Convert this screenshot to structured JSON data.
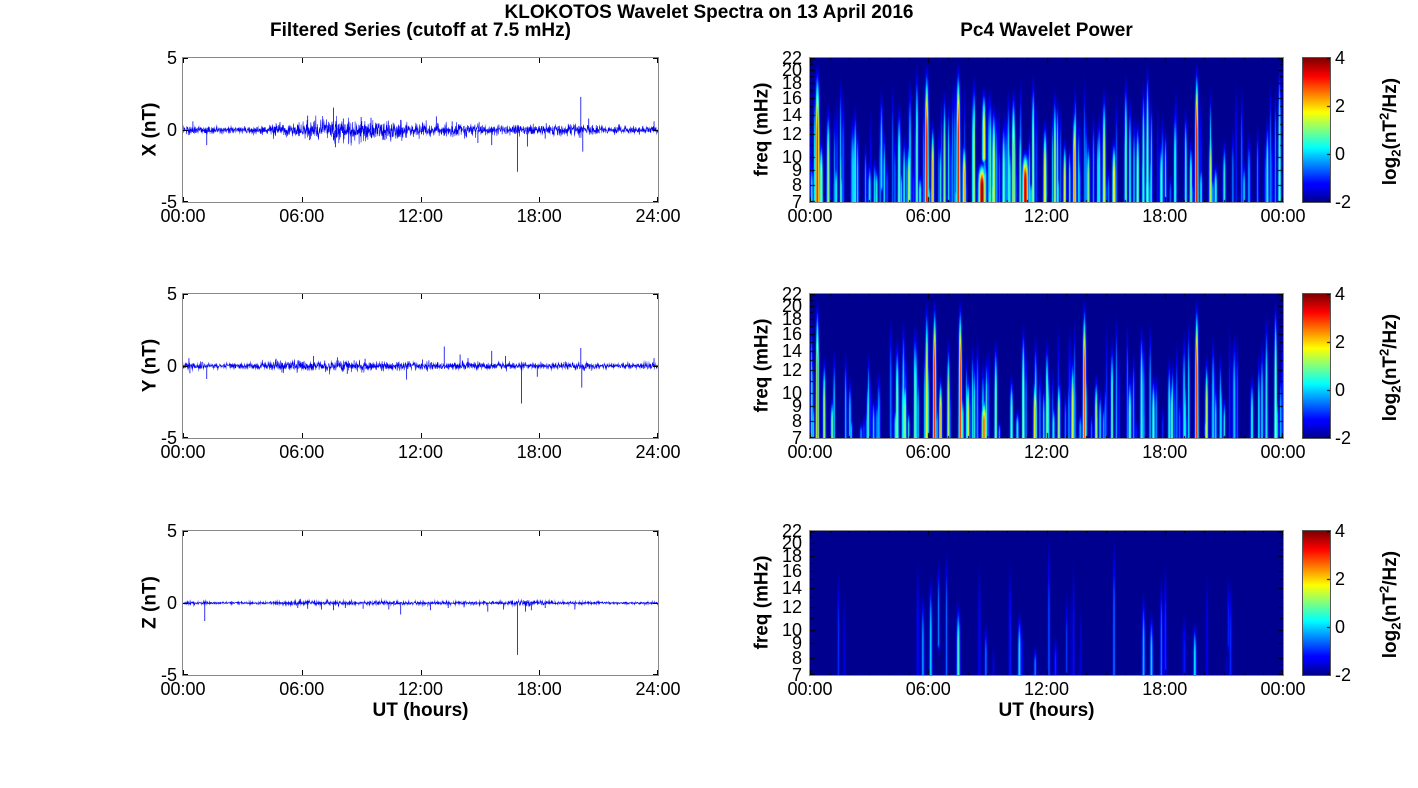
{
  "figure": {
    "title": "KLOKOTOS Wavelet Spectra on 13 April 2016",
    "left_title": "Filtered Series (cutoff at 7.5 mHz)",
    "right_title": "Pc4 Wavelet Power",
    "x_axis_label": "UT (hours)",
    "colors": {
      "line": "#0000ee",
      "spectro_background": "#00008f",
      "axis_box": "#888888",
      "tick_mark": "#000000",
      "text": "#000000"
    }
  },
  "chart_data": [
    {
      "type": "line",
      "panel": "timeseries",
      "component": "X",
      "ylabel": "X (nT)",
      "x_ticks": [
        "00:00",
        "06:00",
        "12:00",
        "18:00",
        "24:00"
      ],
      "y_ticks": [
        "5",
        "0",
        "-5"
      ],
      "ylim": [
        -5,
        5
      ],
      "xlim_hours": [
        0,
        24
      ],
      "seed": 101,
      "noise_envelope_per_hour": [
        0.16,
        0.14,
        0.12,
        0.12,
        0.14,
        0.22,
        0.3,
        0.38,
        0.42,
        0.38,
        0.32,
        0.3,
        0.28,
        0.24,
        0.2,
        0.2,
        0.18,
        0.18,
        0.16,
        0.2,
        0.28,
        0.14,
        0.12,
        0.12,
        0.14
      ],
      "spike_columns": [
        "t_hours",
        "value_nT"
      ],
      "spikes": [
        [
          0.5,
          0.6
        ],
        [
          1.2,
          -1.05
        ],
        [
          4.9,
          0.55
        ],
        [
          6.3,
          1.0
        ],
        [
          6.4,
          -0.7
        ],
        [
          7.6,
          1.55
        ],
        [
          7.7,
          -1.2
        ],
        [
          8.1,
          0.8
        ],
        [
          8.5,
          -0.9
        ],
        [
          9.0,
          0.9
        ],
        [
          9.5,
          0.85
        ],
        [
          10.2,
          -0.7
        ],
        [
          11.0,
          0.7
        ],
        [
          12.8,
          0.95
        ],
        [
          13.6,
          0.6
        ],
        [
          14.9,
          -0.9
        ],
        [
          15.6,
          -1.05
        ],
        [
          16.9,
          -2.9
        ],
        [
          17.4,
          -1.15
        ],
        [
          18.3,
          -0.6
        ],
        [
          20.1,
          2.3
        ],
        [
          20.2,
          -1.5
        ],
        [
          20.5,
          0.8
        ],
        [
          23.8,
          0.6
        ]
      ]
    },
    {
      "type": "heatmap",
      "panel": "spectrogram",
      "component": "X",
      "ylabel": "freq (mHz)",
      "x_ticks": [
        "00:00",
        "06:00",
        "12:00",
        "18:00",
        "00:00"
      ],
      "y_ticks": [
        7,
        8,
        9,
        10,
        12,
        14,
        16,
        18,
        20,
        22
      ],
      "freq_range_mHz": [
        7,
        22
      ],
      "yscale": "log",
      "value_range_log2_power": [
        -2,
        4
      ],
      "colorbar": {
        "ticks": [
          "4",
          "2",
          "0",
          "-2"
        ],
        "tick_values": [
          4,
          2,
          0,
          -2
        ],
        "label_parts": {
          "pre": "log",
          "sub": "2",
          "mid": "(nT",
          "sup": "2",
          "post": "/Hz)"
        }
      },
      "streak_columns": [
        "t_hours",
        "sigma_hours",
        "f_low_mHz",
        "f_high_mHz",
        "peak_log2_power"
      ],
      "streaks": [
        [
          0.35,
          0.08,
          7,
          22,
          3.2
        ],
        [
          0.55,
          0.05,
          7,
          12,
          2.0
        ],
        [
          0.9,
          0.06,
          7,
          16,
          1.2
        ],
        [
          1.3,
          0.05,
          7,
          10,
          0.5
        ],
        [
          2.2,
          0.05,
          7,
          14,
          0.2
        ],
        [
          3.0,
          0.05,
          7,
          10,
          0.5
        ],
        [
          3.6,
          0.05,
          8,
          18,
          0.3
        ],
        [
          4.5,
          0.06,
          7,
          16,
          1.0
        ],
        [
          5.0,
          0.06,
          7,
          12,
          1.6
        ],
        [
          5.4,
          0.05,
          7,
          22,
          1.0
        ],
        [
          5.9,
          0.07,
          7,
          22,
          3.4
        ],
        [
          6.2,
          0.05,
          7,
          14,
          2.2
        ],
        [
          6.8,
          0.05,
          7,
          18,
          1.2
        ],
        [
          7.5,
          0.07,
          7,
          22,
          3.5
        ],
        [
          7.8,
          0.06,
          7,
          12,
          2.4
        ],
        [
          8.3,
          0.05,
          7,
          20,
          1.5
        ],
        [
          8.7,
          0.12,
          7,
          10,
          4.0
        ],
        [
          8.8,
          0.07,
          10,
          18,
          2.2
        ],
        [
          9.3,
          0.06,
          7,
          16,
          2.0
        ],
        [
          9.8,
          0.05,
          7,
          14,
          1.4
        ],
        [
          10.3,
          0.06,
          7,
          18,
          2.2
        ],
        [
          10.9,
          0.1,
          7,
          11,
          3.8
        ],
        [
          11.3,
          0.05,
          7,
          20,
          1.6
        ],
        [
          11.9,
          0.06,
          7,
          14,
          2.0
        ],
        [
          12.4,
          0.05,
          7,
          18,
          1.4
        ],
        [
          12.9,
          0.05,
          7,
          12,
          1.8
        ],
        [
          13.4,
          0.06,
          7,
          16,
          2.4
        ],
        [
          14.1,
          0.05,
          7,
          12,
          1.2
        ],
        [
          14.9,
          0.06,
          7,
          18,
          1.6
        ],
        [
          15.4,
          0.06,
          7,
          12,
          2.2
        ],
        [
          16.0,
          0.05,
          7,
          20,
          1.2
        ],
        [
          16.6,
          0.05,
          7,
          14,
          1.5
        ],
        [
          17.1,
          0.05,
          7,
          22,
          1.3
        ],
        [
          17.8,
          0.05,
          7,
          12,
          1.0
        ],
        [
          18.5,
          0.05,
          7,
          16,
          0.8
        ],
        [
          19.3,
          0.05,
          7,
          12,
          1.0
        ],
        [
          19.6,
          0.06,
          7,
          22,
          3.6
        ],
        [
          20.3,
          0.05,
          7,
          14,
          1.6
        ],
        [
          21.0,
          0.05,
          7,
          12,
          0.6
        ],
        [
          22.0,
          0.04,
          7,
          10,
          0.3
        ],
        [
          23.8,
          0.05,
          7,
          22,
          1.4
        ]
      ],
      "minor_streaks": {
        "count": 150,
        "seed": 11,
        "v_min": -1.2,
        "v_max": 1.0
      }
    },
    {
      "type": "line",
      "panel": "timeseries",
      "component": "Y",
      "ylabel": "Y (nT)",
      "x_ticks": [
        "00:00",
        "06:00",
        "12:00",
        "18:00",
        "24:00"
      ],
      "y_ticks": [
        "5",
        "0",
        "-5"
      ],
      "ylim": [
        -5,
        5
      ],
      "xlim_hours": [
        0,
        24
      ],
      "seed": 202,
      "noise_envelope_per_hour": [
        0.14,
        0.11,
        0.09,
        0.09,
        0.12,
        0.18,
        0.2,
        0.18,
        0.2,
        0.18,
        0.17,
        0.16,
        0.15,
        0.14,
        0.14,
        0.12,
        0.11,
        0.11,
        0.1,
        0.11,
        0.16,
        0.09,
        0.08,
        0.09,
        0.11
      ],
      "spike_columns": [
        "t_hours",
        "value_nT"
      ],
      "spikes": [
        [
          0.3,
          0.55
        ],
        [
          0.35,
          -0.5
        ],
        [
          1.2,
          -0.9
        ],
        [
          4.7,
          0.5
        ],
        [
          5.0,
          -0.45
        ],
        [
          6.6,
          0.7
        ],
        [
          7.8,
          0.6
        ],
        [
          8.3,
          -0.55
        ],
        [
          9.2,
          0.5
        ],
        [
          11.3,
          -0.95
        ],
        [
          12.1,
          0.45
        ],
        [
          13.2,
          1.35
        ],
        [
          14.0,
          0.8
        ],
        [
          14.4,
          0.55
        ],
        [
          15.6,
          1.05
        ],
        [
          16.3,
          0.7
        ],
        [
          17.1,
          -2.6
        ],
        [
          17.9,
          -0.75
        ],
        [
          20.1,
          1.25
        ],
        [
          20.15,
          -1.5
        ],
        [
          23.8,
          0.55
        ]
      ]
    },
    {
      "type": "heatmap",
      "panel": "spectrogram",
      "component": "Y",
      "ylabel": "freq (mHz)",
      "x_ticks": [
        "00:00",
        "06:00",
        "12:00",
        "18:00",
        "00:00"
      ],
      "y_ticks": [
        7,
        8,
        9,
        10,
        12,
        14,
        16,
        18,
        20,
        22
      ],
      "freq_range_mHz": [
        7,
        22
      ],
      "yscale": "log",
      "value_range_log2_power": [
        -2,
        4
      ],
      "colorbar": {
        "ticks": [
          "4",
          "2",
          "0",
          "-2"
        ],
        "tick_values": [
          4,
          2,
          0,
          -2
        ],
        "label_parts": {
          "pre": "log",
          "sub": "2",
          "mid": "(nT",
          "sup": "2",
          "post": "/Hz)"
        }
      },
      "streak_columns": [
        "t_hours",
        "sigma_hours",
        "f_low_mHz",
        "f_high_mHz",
        "peak_log2_power"
      ],
      "streaks": [
        [
          0.35,
          0.06,
          7,
          22,
          2.6
        ],
        [
          0.7,
          0.05,
          7,
          14,
          1.4
        ],
        [
          1.1,
          0.05,
          7,
          10,
          1.0
        ],
        [
          2.0,
          0.04,
          7,
          12,
          0.3
        ],
        [
          3.2,
          0.04,
          7,
          10,
          0.3
        ],
        [
          4.4,
          0.06,
          7,
          16,
          1.2
        ],
        [
          4.8,
          0.05,
          7,
          12,
          1.5
        ],
        [
          5.3,
          0.05,
          7,
          18,
          1.0
        ],
        [
          5.9,
          0.06,
          7,
          22,
          1.8
        ],
        [
          6.3,
          0.06,
          7,
          22,
          3.4
        ],
        [
          6.6,
          0.05,
          7,
          12,
          2.2
        ],
        [
          7.0,
          0.05,
          7,
          16,
          1.4
        ],
        [
          7.6,
          0.06,
          7,
          22,
          3.2
        ],
        [
          8.0,
          0.05,
          7,
          12,
          1.8
        ],
        [
          8.8,
          0.08,
          7,
          10,
          2.8
        ],
        [
          9.4,
          0.05,
          7,
          16,
          1.4
        ],
        [
          10.2,
          0.05,
          7,
          12,
          1.2
        ],
        [
          10.8,
          0.05,
          7,
          18,
          1.6
        ],
        [
          11.4,
          0.06,
          7,
          12,
          2.4
        ],
        [
          12.0,
          0.05,
          7,
          16,
          1.2
        ],
        [
          12.6,
          0.05,
          7,
          12,
          1.4
        ],
        [
          13.3,
          0.05,
          7,
          14,
          1.8
        ],
        [
          13.9,
          0.06,
          7,
          22,
          3.0
        ],
        [
          14.5,
          0.05,
          7,
          12,
          1.4
        ],
        [
          15.3,
          0.05,
          7,
          16,
          1.0
        ],
        [
          16.2,
          0.05,
          7,
          12,
          1.2
        ],
        [
          16.8,
          0.05,
          7,
          18,
          1.0
        ],
        [
          17.4,
          0.05,
          7,
          12,
          1.2
        ],
        [
          18.2,
          0.04,
          7,
          14,
          0.8
        ],
        [
          19.0,
          0.04,
          7,
          12,
          0.8
        ],
        [
          19.6,
          0.06,
          7,
          22,
          3.3
        ],
        [
          20.1,
          0.05,
          7,
          14,
          1.6
        ],
        [
          21.0,
          0.04,
          7,
          10,
          0.5
        ],
        [
          23.6,
          0.05,
          7,
          22,
          1.6
        ]
      ],
      "minor_streaks": {
        "count": 120,
        "seed": 22,
        "v_min": -1.2,
        "v_max": 0.8
      }
    },
    {
      "type": "line",
      "panel": "timeseries",
      "component": "Z",
      "ylabel": "Z (nT)",
      "x_ticks": [
        "00:00",
        "06:00",
        "12:00",
        "18:00",
        "24:00"
      ],
      "y_ticks": [
        "5",
        "0",
        "-5"
      ],
      "ylim": [
        -5,
        5
      ],
      "xlim_hours": [
        0,
        24
      ],
      "seed": 303,
      "noise_envelope_per_hour": [
        0.05,
        0.05,
        0.04,
        0.04,
        0.05,
        0.07,
        0.09,
        0.09,
        0.08,
        0.07,
        0.07,
        0.07,
        0.07,
        0.06,
        0.06,
        0.06,
        0.06,
        0.09,
        0.07,
        0.06,
        0.05,
        0.04,
        0.04,
        0.04,
        0.05
      ],
      "spike_columns": [
        "t_hours",
        "value_nT"
      ],
      "spikes": [
        [
          1.1,
          -1.25
        ],
        [
          5.8,
          -0.35
        ],
        [
          6.3,
          -0.4
        ],
        [
          7.0,
          -0.45
        ],
        [
          7.6,
          -0.5
        ],
        [
          8.2,
          -0.35
        ],
        [
          9.1,
          -0.4
        ],
        [
          10.4,
          -0.45
        ],
        [
          11.0,
          -0.8
        ],
        [
          12.5,
          -0.5
        ],
        [
          13.4,
          -0.35
        ],
        [
          14.2,
          -0.3
        ],
        [
          15.4,
          -0.6
        ],
        [
          16.2,
          -0.45
        ],
        [
          16.9,
          -3.6
        ],
        [
          17.3,
          -0.6
        ],
        [
          17.6,
          -0.5
        ],
        [
          18.3,
          -0.35
        ],
        [
          19.8,
          -0.45
        ]
      ]
    },
    {
      "type": "heatmap",
      "panel": "spectrogram",
      "component": "Z",
      "ylabel": "freq (mHz)",
      "x_ticks": [
        "00:00",
        "06:00",
        "12:00",
        "18:00",
        "00:00"
      ],
      "y_ticks": [
        7,
        8,
        9,
        10,
        12,
        14,
        16,
        18,
        20,
        22
      ],
      "freq_range_mHz": [
        7,
        22
      ],
      "yscale": "log",
      "value_range_log2_power": [
        -2,
        4
      ],
      "colorbar": {
        "ticks": [
          "4",
          "2",
          "0",
          "-2"
        ],
        "tick_values": [
          4,
          2,
          0,
          -2
        ],
        "label_parts": {
          "pre": "log",
          "sub": "2",
          "mid": "(nT",
          "sup": "2",
          "post": "/Hz)"
        }
      },
      "streak_columns": [
        "t_hours",
        "sigma_hours",
        "f_low_mHz",
        "f_high_mHz",
        "peak_log2_power"
      ],
      "streaks": [
        [
          5.7,
          0.05,
          7,
          14,
          -0.2
        ],
        [
          6.1,
          0.05,
          7,
          16,
          0.2
        ],
        [
          6.5,
          0.04,
          9,
          18,
          -0.3
        ],
        [
          6.9,
          0.04,
          7,
          20,
          -0.5
        ],
        [
          7.5,
          0.06,
          7,
          13,
          0.8
        ],
        [
          8.9,
          0.04,
          7,
          11,
          -0.4
        ],
        [
          10.6,
          0.05,
          7,
          12,
          0.4
        ],
        [
          11.4,
          0.04,
          7,
          9,
          -0.3
        ],
        [
          12.1,
          0.04,
          7,
          22,
          -0.6
        ],
        [
          13.0,
          0.03,
          7,
          14,
          -0.8
        ],
        [
          15.4,
          0.04,
          7,
          22,
          -0.4
        ],
        [
          16.9,
          0.05,
          7,
          14,
          0.0
        ],
        [
          17.3,
          0.05,
          7,
          12,
          0.2
        ],
        [
          17.8,
          0.04,
          7,
          16,
          -0.4
        ],
        [
          19.5,
          0.05,
          7,
          11,
          0.4
        ],
        [
          21.2,
          0.03,
          9,
          16,
          -1.0
        ]
      ],
      "minor_streaks": {
        "count": 18,
        "seed": 33,
        "v_min": -1.7,
        "v_max": -0.9
      }
    }
  ]
}
